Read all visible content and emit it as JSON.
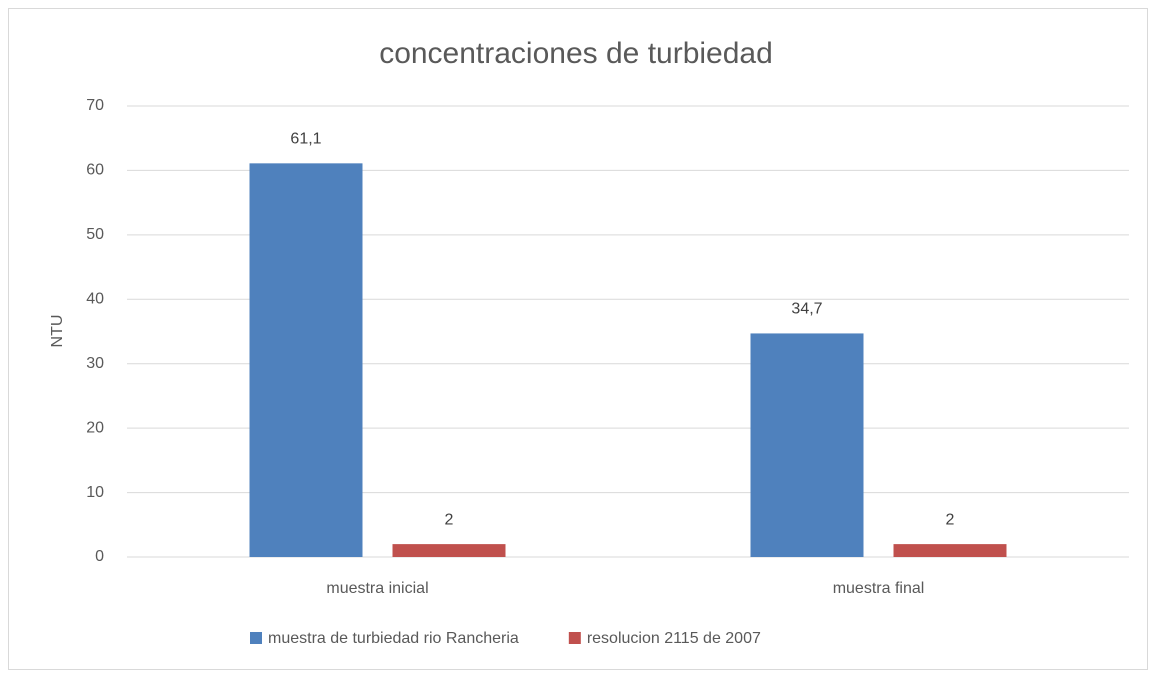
{
  "chart_data": {
    "type": "bar",
    "title": "concentraciones de turbiedad",
    "y_label": "NTU",
    "categories": [
      "muestra inicial",
      "muestra final"
    ],
    "series": [
      {
        "name": "muestra de turbiedad rio Rancheria",
        "color": "#4f81bd",
        "values": [
          61.1,
          34.7
        ],
        "value_labels": [
          "61,1",
          "34,7"
        ]
      },
      {
        "name": "resolucion 2115 de 2007",
        "color": "#c0504d",
        "values": [
          2,
          2
        ],
        "value_labels": [
          "2",
          "2"
        ]
      }
    ],
    "ylim": [
      0,
      70
    ],
    "yticks": [
      0,
      10,
      20,
      30,
      40,
      50,
      60,
      70
    ],
    "grid": true,
    "legend": "bottom"
  }
}
